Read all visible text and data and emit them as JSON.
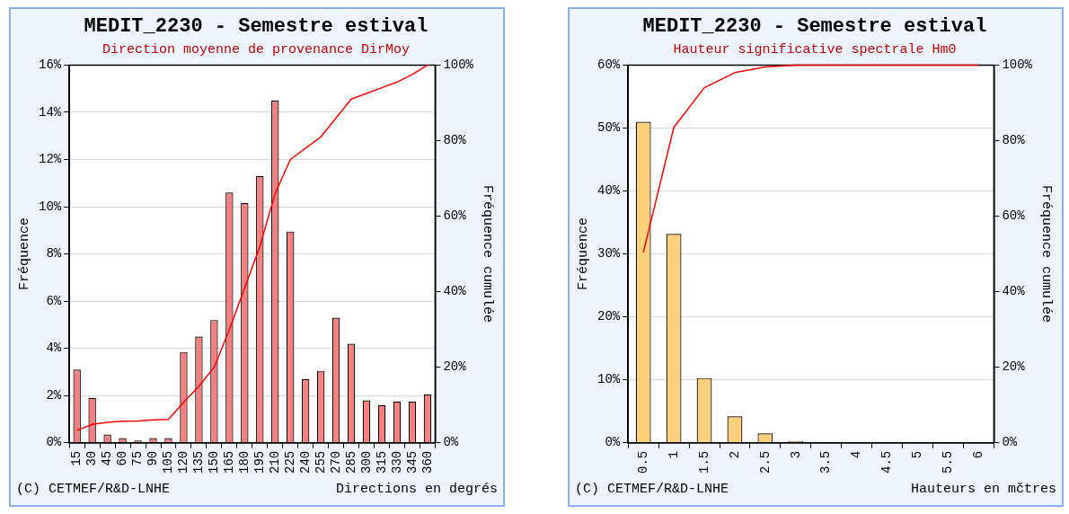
{
  "chart_data": [
    {
      "type": "bar",
      "title": "MEDIT_2230 - Semestre estival",
      "subtitle": "Direction moyenne de provenance DirMoy",
      "xlabel": "Directions en degrés",
      "ylabel": "Fréquence",
      "y2label": "Fréquence cumulée",
      "annotations": [
        "(C) CETMEF/R&D-LNHE"
      ],
      "categories": [
        "15",
        "30",
        "45",
        "60",
        "75",
        "90",
        "105",
        "120",
        "135",
        "150",
        "165",
        "180",
        "195",
        "210",
        "225",
        "240",
        "255",
        "270",
        "285",
        "300",
        "315",
        "330",
        "345",
        "360"
      ],
      "series": [
        {
          "color": "#f58080",
          "values": [
            3.1,
            1.9,
            0.35,
            0.2,
            0.1,
            0.2,
            0.2,
            3.85,
            4.5,
            5.2,
            10.6,
            10.15,
            11.3,
            14.5,
            8.95,
            2.7,
            3.05,
            5.3,
            4.2,
            1.8,
            1.6,
            1.75,
            1.75,
            2.05
          ]
        },
        {
          "type": "line",
          "axis": "y2",
          "color": "#ff0000",
          "values": [
            3.3,
            4.9,
            5.4,
            5.7,
            5.8,
            6.1,
            6.2,
            10.7,
            15,
            20,
            30,
            41,
            52,
            66,
            75,
            78,
            81,
            86,
            91,
            92.5,
            94,
            95.5,
            97.5,
            100
          ]
        }
      ],
      "ylim": [
        0,
        16
      ],
      "yticks": [
        {
          "value": 0,
          "label": "0%"
        },
        {
          "value": 2,
          "label": "2%"
        },
        {
          "value": 4,
          "label": "4%"
        },
        {
          "value": 6,
          "label": "6%"
        },
        {
          "value": 8,
          "label": "8%"
        },
        {
          "value": 10,
          "label": "10%"
        },
        {
          "value": 12,
          "label": "12%"
        },
        {
          "value": 14,
          "label": "14%"
        },
        {
          "value": 16,
          "label": "16%"
        }
      ],
      "y2lim": [
        0,
        100
      ],
      "y2ticks": [
        {
          "value": 0,
          "label": "0%"
        },
        {
          "value": 20,
          "label": "20%"
        },
        {
          "value": 40,
          "label": "40%"
        },
        {
          "value": 60,
          "label": "60%"
        },
        {
          "value": 80,
          "label": "80%"
        },
        {
          "value": 100,
          "label": "100%"
        }
      ],
      "grid": "y"
    },
    {
      "type": "bar",
      "title": "MEDIT_2230 - Semestre estival",
      "subtitle": "Hauteur significative spectrale Hm0",
      "xlabel": "Hauteurs en mčtres",
      "ylabel": "Fréquence",
      "y2label": "Fréquence cumulée",
      "annotations": [
        "(C) CETMEF/R&D-LNHE"
      ],
      "categories": [
        "0.5",
        "1",
        "1.5",
        "2",
        "2.5",
        "3",
        "3.5",
        "4",
        "4.5",
        "5",
        "5.5",
        "6"
      ],
      "series": [
        {
          "color": "#fdd07b",
          "values": [
            51,
            33.2,
            10.3,
            4.2,
            1.5,
            0.3,
            0,
            0,
            0,
            0,
            0,
            0
          ]
        },
        {
          "type": "line",
          "axis": "y2",
          "color": "#ff0000",
          "values": [
            50.4,
            83.5,
            94,
            98,
            99.5,
            100,
            100,
            100,
            100,
            100,
            100,
            100
          ]
        }
      ],
      "ylim": [
        0,
        60
      ],
      "yticks": [
        {
          "value": 0,
          "label": "0%"
        },
        {
          "value": 10,
          "label": "10%"
        },
        {
          "value": 20,
          "label": "20%"
        },
        {
          "value": 30,
          "label": "30%"
        },
        {
          "value": 40,
          "label": "40%"
        },
        {
          "value": 50,
          "label": "50%"
        },
        {
          "value": 60,
          "label": "60%"
        }
      ],
      "y2lim": [
        0,
        100
      ],
      "y2ticks": [
        {
          "value": 0,
          "label": "0%"
        },
        {
          "value": 20,
          "label": "20%"
        },
        {
          "value": 40,
          "label": "40%"
        },
        {
          "value": 60,
          "label": "60%"
        },
        {
          "value": 80,
          "label": "80%"
        },
        {
          "value": 100,
          "label": "100%"
        }
      ],
      "grid": "y"
    }
  ]
}
